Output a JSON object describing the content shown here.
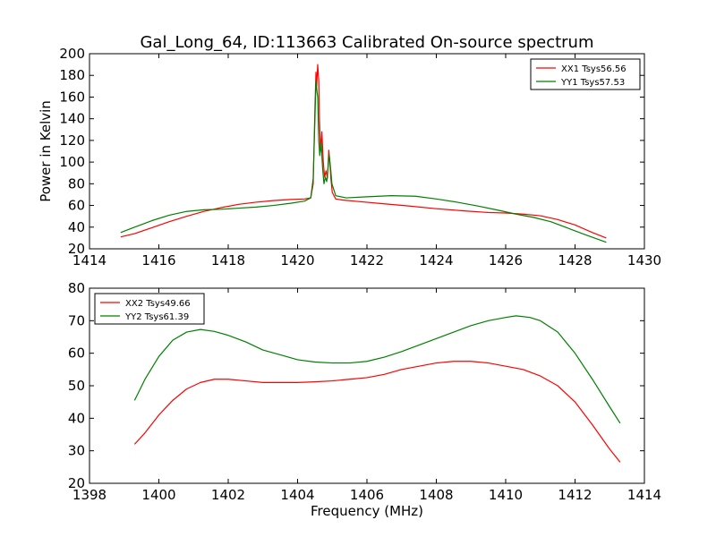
{
  "figure": {
    "title": "Gal_Long_64, ID:113663 Calibrated On-source spectrum"
  },
  "chart_data": [
    {
      "type": "line",
      "title": "Gal_Long_64, ID:113663 Calibrated On-source spectrum",
      "xlabel": "",
      "ylabel": "Power in Kelvin",
      "xlim": [
        1414,
        1430
      ],
      "ylim": [
        20,
        200
      ],
      "xticks": [
        1414,
        1416,
        1418,
        1420,
        1422,
        1424,
        1426,
        1428,
        1430
      ],
      "yticks": [
        20,
        40,
        60,
        80,
        100,
        120,
        140,
        160,
        180,
        200
      ],
      "grid": false,
      "legend_position": "top-right",
      "series": [
        {
          "name": "XX1 Tsys56.56",
          "color": "#ff0000",
          "points": [
            [
              1414.9,
              31
            ],
            [
              1415.3,
              34
            ],
            [
              1415.8,
              39.5
            ],
            [
              1416.3,
              45
            ],
            [
              1416.8,
              50
            ],
            [
              1417.3,
              54.5
            ],
            [
              1417.8,
              58
            ],
            [
              1418.3,
              61
            ],
            [
              1418.8,
              63
            ],
            [
              1419.3,
              64.5
            ],
            [
              1419.8,
              65.5
            ],
            [
              1420.2,
              66
            ],
            [
              1420.38,
              67
            ],
            [
              1420.45,
              80
            ],
            [
              1420.5,
              150
            ],
            [
              1420.53,
              183
            ],
            [
              1420.55,
              170
            ],
            [
              1420.58,
              190
            ],
            [
              1420.61,
              175
            ],
            [
              1420.63,
              140
            ],
            [
              1420.66,
              110
            ],
            [
              1420.7,
              128
            ],
            [
              1420.74,
              100
            ],
            [
              1420.78,
              86
            ],
            [
              1420.82,
              92
            ],
            [
              1420.86,
              85
            ],
            [
              1420.9,
              111
            ],
            [
              1420.93,
              100
            ],
            [
              1420.96,
              85
            ],
            [
              1421.0,
              72
            ],
            [
              1421.1,
              66
            ],
            [
              1421.3,
              65
            ],
            [
              1421.8,
              63.5
            ],
            [
              1422.5,
              61.5
            ],
            [
              1423.2,
              59.5
            ],
            [
              1424.0,
              57
            ],
            [
              1424.8,
              55
            ],
            [
              1425.5,
              53.5
            ],
            [
              1426.0,
              53
            ],
            [
              1426.5,
              52
            ],
            [
              1427.0,
              50.5
            ],
            [
              1427.5,
              47
            ],
            [
              1428.0,
              42
            ],
            [
              1428.5,
              35
            ],
            [
              1428.9,
              30
            ]
          ]
        },
        {
          "name": "YY1 Tsys57.53",
          "color": "#008000",
          "points": [
            [
              1414.9,
              35
            ],
            [
              1415.3,
              40
            ],
            [
              1415.8,
              46
            ],
            [
              1416.3,
              51
            ],
            [
              1416.8,
              54.5
            ],
            [
              1417.3,
              56
            ],
            [
              1417.8,
              56.5
            ],
            [
              1418.3,
              57.5
            ],
            [
              1418.8,
              58.5
            ],
            [
              1419.3,
              60
            ],
            [
              1419.8,
              62
            ],
            [
              1420.2,
              64
            ],
            [
              1420.38,
              67
            ],
            [
              1420.45,
              85
            ],
            [
              1420.5,
              140
            ],
            [
              1420.53,
              175
            ],
            [
              1420.56,
              165
            ],
            [
              1420.58,
              160
            ],
            [
              1420.61,
              120
            ],
            [
              1420.64,
              106
            ],
            [
              1420.68,
              118
            ],
            [
              1420.72,
              95
            ],
            [
              1420.76,
              80
            ],
            [
              1420.8,
              86
            ],
            [
              1420.84,
              82
            ],
            [
              1420.88,
              95
            ],
            [
              1420.91,
              107
            ],
            [
              1420.95,
              95
            ],
            [
              1420.99,
              80
            ],
            [
              1421.1,
              69
            ],
            [
              1421.4,
              67
            ],
            [
              1422.0,
              68
            ],
            [
              1422.7,
              69
            ],
            [
              1423.4,
              68.5
            ],
            [
              1424.0,
              66
            ],
            [
              1424.6,
              63
            ],
            [
              1425.2,
              59.5
            ],
            [
              1425.8,
              55.5
            ],
            [
              1426.3,
              52
            ],
            [
              1426.8,
              49
            ],
            [
              1427.3,
              45
            ],
            [
              1427.8,
              39
            ],
            [
              1428.3,
              33
            ],
            [
              1428.9,
              26
            ]
          ]
        }
      ]
    },
    {
      "type": "line",
      "title": "",
      "xlabel": "Frequency (MHz)",
      "ylabel": "",
      "xlim": [
        1398,
        1414
      ],
      "ylim": [
        20,
        80
      ],
      "xticks": [
        1398,
        1400,
        1402,
        1404,
        1406,
        1408,
        1410,
        1412,
        1414
      ],
      "yticks": [
        20,
        30,
        40,
        50,
        60,
        70,
        80
      ],
      "grid": false,
      "legend_position": "top-left",
      "series": [
        {
          "name": "XX2 Tsys49.66",
          "color": "#ff0000",
          "points": [
            [
              1399.3,
              32
            ],
            [
              1399.6,
              35.5
            ],
            [
              1400.0,
              41
            ],
            [
              1400.4,
              45.5
            ],
            [
              1400.8,
              49
            ],
            [
              1401.2,
              51
            ],
            [
              1401.6,
              52
            ],
            [
              1402.0,
              52
            ],
            [
              1402.5,
              51.5
            ],
            [
              1403.0,
              51
            ],
            [
              1403.5,
              51
            ],
            [
              1404.0,
              51
            ],
            [
              1404.5,
              51.2
            ],
            [
              1405.0,
              51.5
            ],
            [
              1405.5,
              52
            ],
            [
              1406.0,
              52.5
            ],
            [
              1406.5,
              53.5
            ],
            [
              1407.0,
              55
            ],
            [
              1407.5,
              56
            ],
            [
              1408.0,
              57
            ],
            [
              1408.5,
              57.5
            ],
            [
              1409.0,
              57.5
            ],
            [
              1409.5,
              57
            ],
            [
              1410.0,
              56
            ],
            [
              1410.5,
              55
            ],
            [
              1411.0,
              53
            ],
            [
              1411.5,
              50
            ],
            [
              1412.0,
              45
            ],
            [
              1412.5,
              38
            ],
            [
              1413.0,
              30.5
            ],
            [
              1413.3,
              26.5
            ]
          ]
        },
        {
          "name": "YY2 Tsys61.39",
          "color": "#008000",
          "points": [
            [
              1399.3,
              45.5
            ],
            [
              1399.6,
              52
            ],
            [
              1400.0,
              59
            ],
            [
              1400.4,
              64
            ],
            [
              1400.8,
              66.5
            ],
            [
              1401.2,
              67.3
            ],
            [
              1401.6,
              66.7
            ],
            [
              1402.0,
              65.5
            ],
            [
              1402.5,
              63.5
            ],
            [
              1403.0,
              61
            ],
            [
              1403.5,
              59.5
            ],
            [
              1404.0,
              58
            ],
            [
              1404.5,
              57.3
            ],
            [
              1405.0,
              57
            ],
            [
              1405.5,
              57
            ],
            [
              1406.0,
              57.5
            ],
            [
              1406.5,
              58.8
            ],
            [
              1407.0,
              60.5
            ],
            [
              1407.5,
              62.5
            ],
            [
              1408.0,
              64.5
            ],
            [
              1408.5,
              66.5
            ],
            [
              1409.0,
              68.5
            ],
            [
              1409.5,
              70
            ],
            [
              1410.0,
              71
            ],
            [
              1410.3,
              71.5
            ],
            [
              1410.7,
              71
            ],
            [
              1411.0,
              70
            ],
            [
              1411.5,
              66.5
            ],
            [
              1412.0,
              60
            ],
            [
              1412.5,
              52
            ],
            [
              1413.0,
              43.5
            ],
            [
              1413.3,
              38.5
            ]
          ]
        }
      ]
    }
  ]
}
